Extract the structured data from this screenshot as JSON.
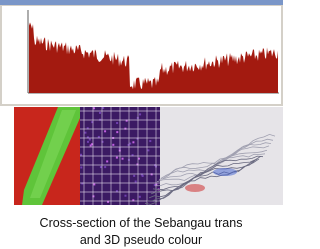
{
  "caption": {
    "lines": [
      "Cross-section of the Sebangau trans",
      "and 3D pseudo colour"
    ]
  }
}
